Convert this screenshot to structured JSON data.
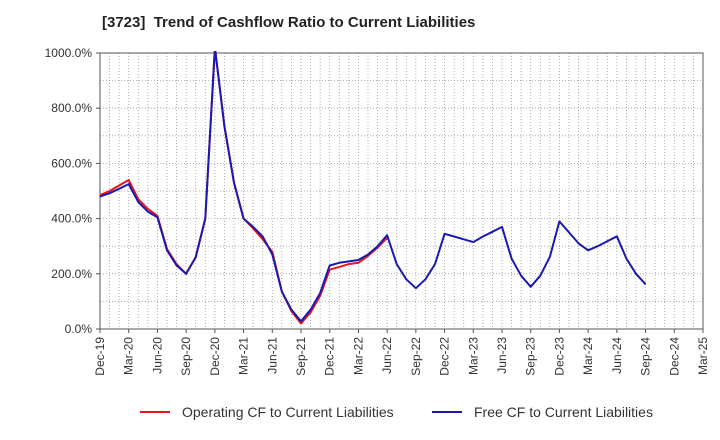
{
  "chart_data": {
    "type": "line",
    "title": "[3723]  Trend of Cashflow Ratio to Current Liabilities",
    "xlabel": "",
    "ylabel": "",
    "ylim": [
      0,
      1000
    ],
    "y_ticks": [
      "0.0%",
      "200.0%",
      "400.0%",
      "600.0%",
      "800.0%",
      "1000.0%"
    ],
    "x_ticks": [
      "Dec-19",
      "Mar-20",
      "Jun-20",
      "Sep-20",
      "Dec-20",
      "Mar-21",
      "Jun-21",
      "Sep-21",
      "Dec-21",
      "Mar-22",
      "Jun-22",
      "Sep-22",
      "Dec-22",
      "Mar-23",
      "Jun-23",
      "Sep-23",
      "Dec-23",
      "Mar-24",
      "Jun-24",
      "Sep-24",
      "Dec-24",
      "Mar-25"
    ],
    "grid": true,
    "legend_position": "bottom",
    "series": [
      {
        "name": "Operating CF to Current Liabilities",
        "color": "#e8141b",
        "start": "Dec-19",
        "values": [
          485,
          500,
          520,
          540,
          470,
          435,
          410,
          290,
          235,
          200,
          260,
          400,
          1020,
          735,
          530,
          400,
          365,
          325,
          280,
          135,
          65,
          20,
          60,
          120,
          215,
          225,
          235,
          240,
          265,
          295,
          330
        ]
      },
      {
        "name": "Free CF to Current Liabilities",
        "color": "#1a1aaf",
        "start": "Dec-19",
        "values": [
          480,
          492,
          508,
          525,
          460,
          425,
          405,
          285,
          230,
          200,
          260,
          400,
          1020,
          735,
          530,
          400,
          370,
          335,
          270,
          135,
          70,
          28,
          70,
          130,
          230,
          240,
          245,
          250,
          270,
          300,
          340,
          235,
          180,
          148,
          180,
          235,
          345,
          335,
          325,
          315,
          335,
          352,
          370,
          255,
          193,
          153,
          193,
          262,
          390,
          350,
          310,
          285,
          300,
          318,
          336,
          255,
          200,
          162
        ]
      }
    ]
  }
}
